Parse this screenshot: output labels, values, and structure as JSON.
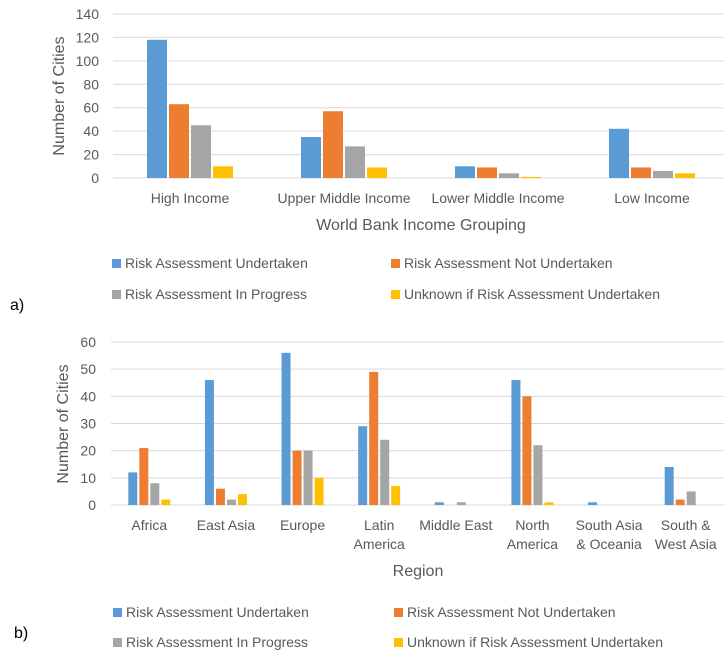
{
  "colors": {
    "risk_assessment_undertaken": "#5b9bd5",
    "risk_assessment_not_undertaken": "#ed7d31",
    "risk_assessment_in_progress": "#a5a5a5",
    "unknown_if_undertaken": "#ffc000",
    "gridline": "#d9d9d9",
    "text": "#595959"
  },
  "chart_data": [
    {
      "type": "bar",
      "panel_label": "a)",
      "xlabel": "World Bank Income Grouping",
      "ylabel": "Number of Cities",
      "ylim": [
        0,
        140
      ],
      "yticks": [
        "0",
        "20",
        "40",
        "60",
        "80",
        "100",
        "120",
        "140"
      ],
      "grid": true,
      "legend_position": "bottom",
      "categories": [
        {
          "label": "High Income"
        },
        {
          "label": "Upper Middle Income"
        },
        {
          "label": "Lower Middle Income"
        },
        {
          "label": "Low Income"
        }
      ],
      "series": [
        {
          "name": "Risk Assessment Undertaken",
          "values": [
            118,
            35,
            10,
            42
          ]
        },
        {
          "name": "Risk Assessment Not Undertaken",
          "values": [
            63,
            57,
            9,
            9
          ]
        },
        {
          "name": "Risk Assessment In Progress",
          "values": [
            45,
            27,
            4,
            6
          ]
        },
        {
          "name": "Unknown if Risk Assessment Undertaken",
          "values": [
            10,
            9,
            1,
            4
          ]
        }
      ]
    },
    {
      "type": "bar",
      "panel_label": "b)",
      "xlabel": "Region",
      "ylabel": "Number of Cities",
      "ylim": [
        0,
        60
      ],
      "yticks": [
        "0",
        "10",
        "20",
        "30",
        "40",
        "50",
        "60"
      ],
      "grid": true,
      "legend_position": "bottom",
      "categories": [
        {
          "label": "Africa"
        },
        {
          "label": "East Asia"
        },
        {
          "label": "Europe"
        },
        {
          "label": "Latin",
          "label2": "America"
        },
        {
          "label": "Middle East"
        },
        {
          "label": "North",
          "label2": "America"
        },
        {
          "label": "South Asia",
          "label2": "& Oceania"
        },
        {
          "label": "South &",
          "label2": "West Asia"
        }
      ],
      "series": [
        {
          "name": "Risk Assessment Undertaken",
          "values": [
            12,
            46,
            56,
            29,
            1,
            46,
            1,
            14
          ]
        },
        {
          "name": "Risk Assessment Not Undertaken",
          "values": [
            21,
            6,
            20,
            49,
            0,
            40,
            0,
            2
          ]
        },
        {
          "name": "Risk Assessment In Progress",
          "values": [
            8,
            2,
            20,
            24,
            1,
            22,
            0,
            5
          ]
        },
        {
          "name": "Unknown if Risk Assessment Undertaken",
          "values": [
            2,
            4,
            10,
            7,
            0,
            1,
            0,
            0
          ]
        }
      ]
    }
  ]
}
